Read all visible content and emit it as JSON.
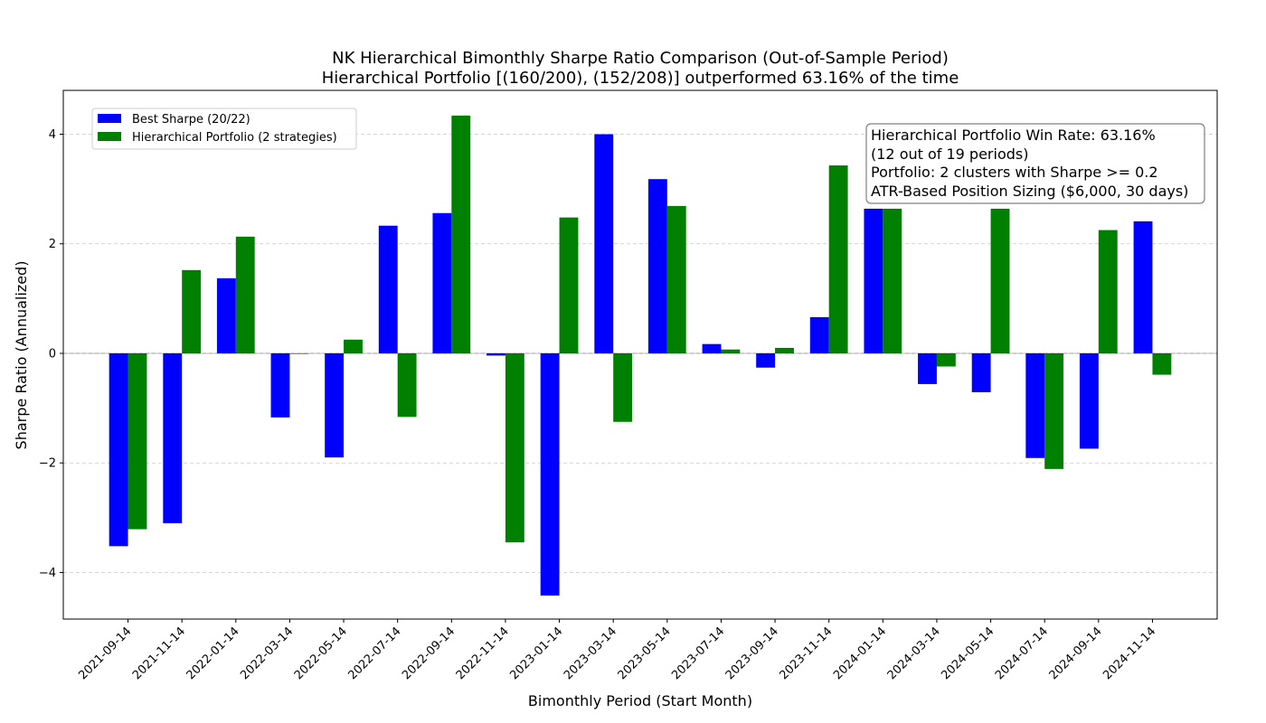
{
  "chart_data": {
    "type": "bar",
    "title": "NK Hierarchical Bimonthly Sharpe Ratio Comparison (Out-of-Sample Period)",
    "subtitle": "Hierarchical Portfolio [(160/200), (152/208)] outperformed 63.16% of the time",
    "xlabel": "Bimonthly Period (Start Month)",
    "ylabel": "Sharpe Ratio (Annualized)",
    "ylim": [
      -4.85,
      4.8
    ],
    "yticks": [
      -4,
      -2,
      0,
      2,
      4
    ],
    "ytick_labels": [
      "−4",
      "−2",
      "0",
      "2",
      "4"
    ],
    "grid": true,
    "legend_position": "top-left",
    "categories": [
      "2021-09-14",
      "2021-11-14",
      "2022-01-14",
      "2022-03-14",
      "2022-05-14",
      "2022-07-14",
      "2022-09-14",
      "2022-11-14",
      "2023-01-14",
      "2023-03-14",
      "2023-05-14",
      "2023-07-14",
      "2023-09-14",
      "2023-11-14",
      "2024-01-14",
      "2024-03-14",
      "2024-05-14",
      "2024-07-14",
      "2024-09-14",
      "2024-11-14"
    ],
    "series": [
      {
        "name": "Best Sharpe (20/22)",
        "color": "#0000ff",
        "values": [
          -3.52,
          -3.1,
          1.37,
          -1.17,
          -1.9,
          2.33,
          2.56,
          -0.04,
          -4.42,
          4.0,
          3.18,
          0.17,
          -0.26,
          0.66,
          2.64,
          -0.56,
          -0.71,
          -1.91,
          -1.74,
          2.41
        ]
      },
      {
        "name": "Hierarchical Portfolio (2 strategies)",
        "color": "#008000",
        "values": [
          -3.21,
          1.52,
          2.13,
          -0.01,
          0.25,
          -1.16,
          4.34,
          -3.45,
          2.48,
          -1.25,
          2.69,
          0.07,
          0.1,
          3.43,
          2.64,
          -0.24,
          2.64,
          -2.11,
          2.25,
          -0.39
        ]
      }
    ],
    "annotation": [
      "Hierarchical Portfolio Win Rate: 63.16%",
      "(12 out of 19 periods)",
      "Portfolio: 2 clusters with Sharpe >= 0.2",
      "ATR-Based Position Sizing ($6,000, 30 days)"
    ]
  }
}
